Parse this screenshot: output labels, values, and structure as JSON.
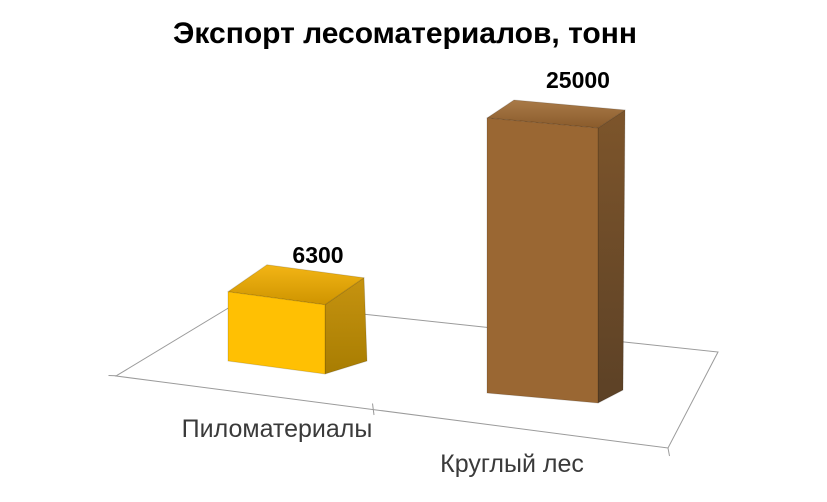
{
  "title": "Экспорт лесоматериалов, тонн",
  "chart_data": {
    "type": "bar",
    "subtype": "3d-column-perspective",
    "title": "Экспорт лесоматериалов, тонн",
    "categories": [
      "Пиломатериалы",
      "Круглый лес"
    ],
    "values": [
      6300,
      25000
    ],
    "data_labels": [
      "6300",
      "25000"
    ],
    "xlabel": "",
    "ylabel": "",
    "ylim": [
      0,
      25000
    ],
    "legend_position": "none",
    "gridlines": false,
    "value_axis_visible": false,
    "floor_visible": true,
    "background_color": "#FFFFFF",
    "bars": [
      {
        "category": "Пиломатериалы",
        "value": 6300,
        "label": "6300",
        "color": "#FFC000",
        "face_colors": {
          "front": "#FFC003",
          "top_back": "#F3B515",
          "top_front": "#CE9400",
          "side_top": "#C69310",
          "side_bottom": "#A87D02"
        }
      },
      {
        "category": "Круглый лес",
        "value": 25000,
        "label": "25000",
        "color": "#996632",
        "face_colors": {
          "front": "#9A6733",
          "top_back": "#A97A48",
          "top_front": "#8A5B2B",
          "side_top": "#7D552B",
          "side_bottom": "#5C4126"
        }
      }
    ]
  },
  "colors": {
    "title_text": "#000000",
    "value_label_text": "#000000",
    "category_label_text": "#3A3A3A",
    "axis_line": "#9B9B9B"
  }
}
